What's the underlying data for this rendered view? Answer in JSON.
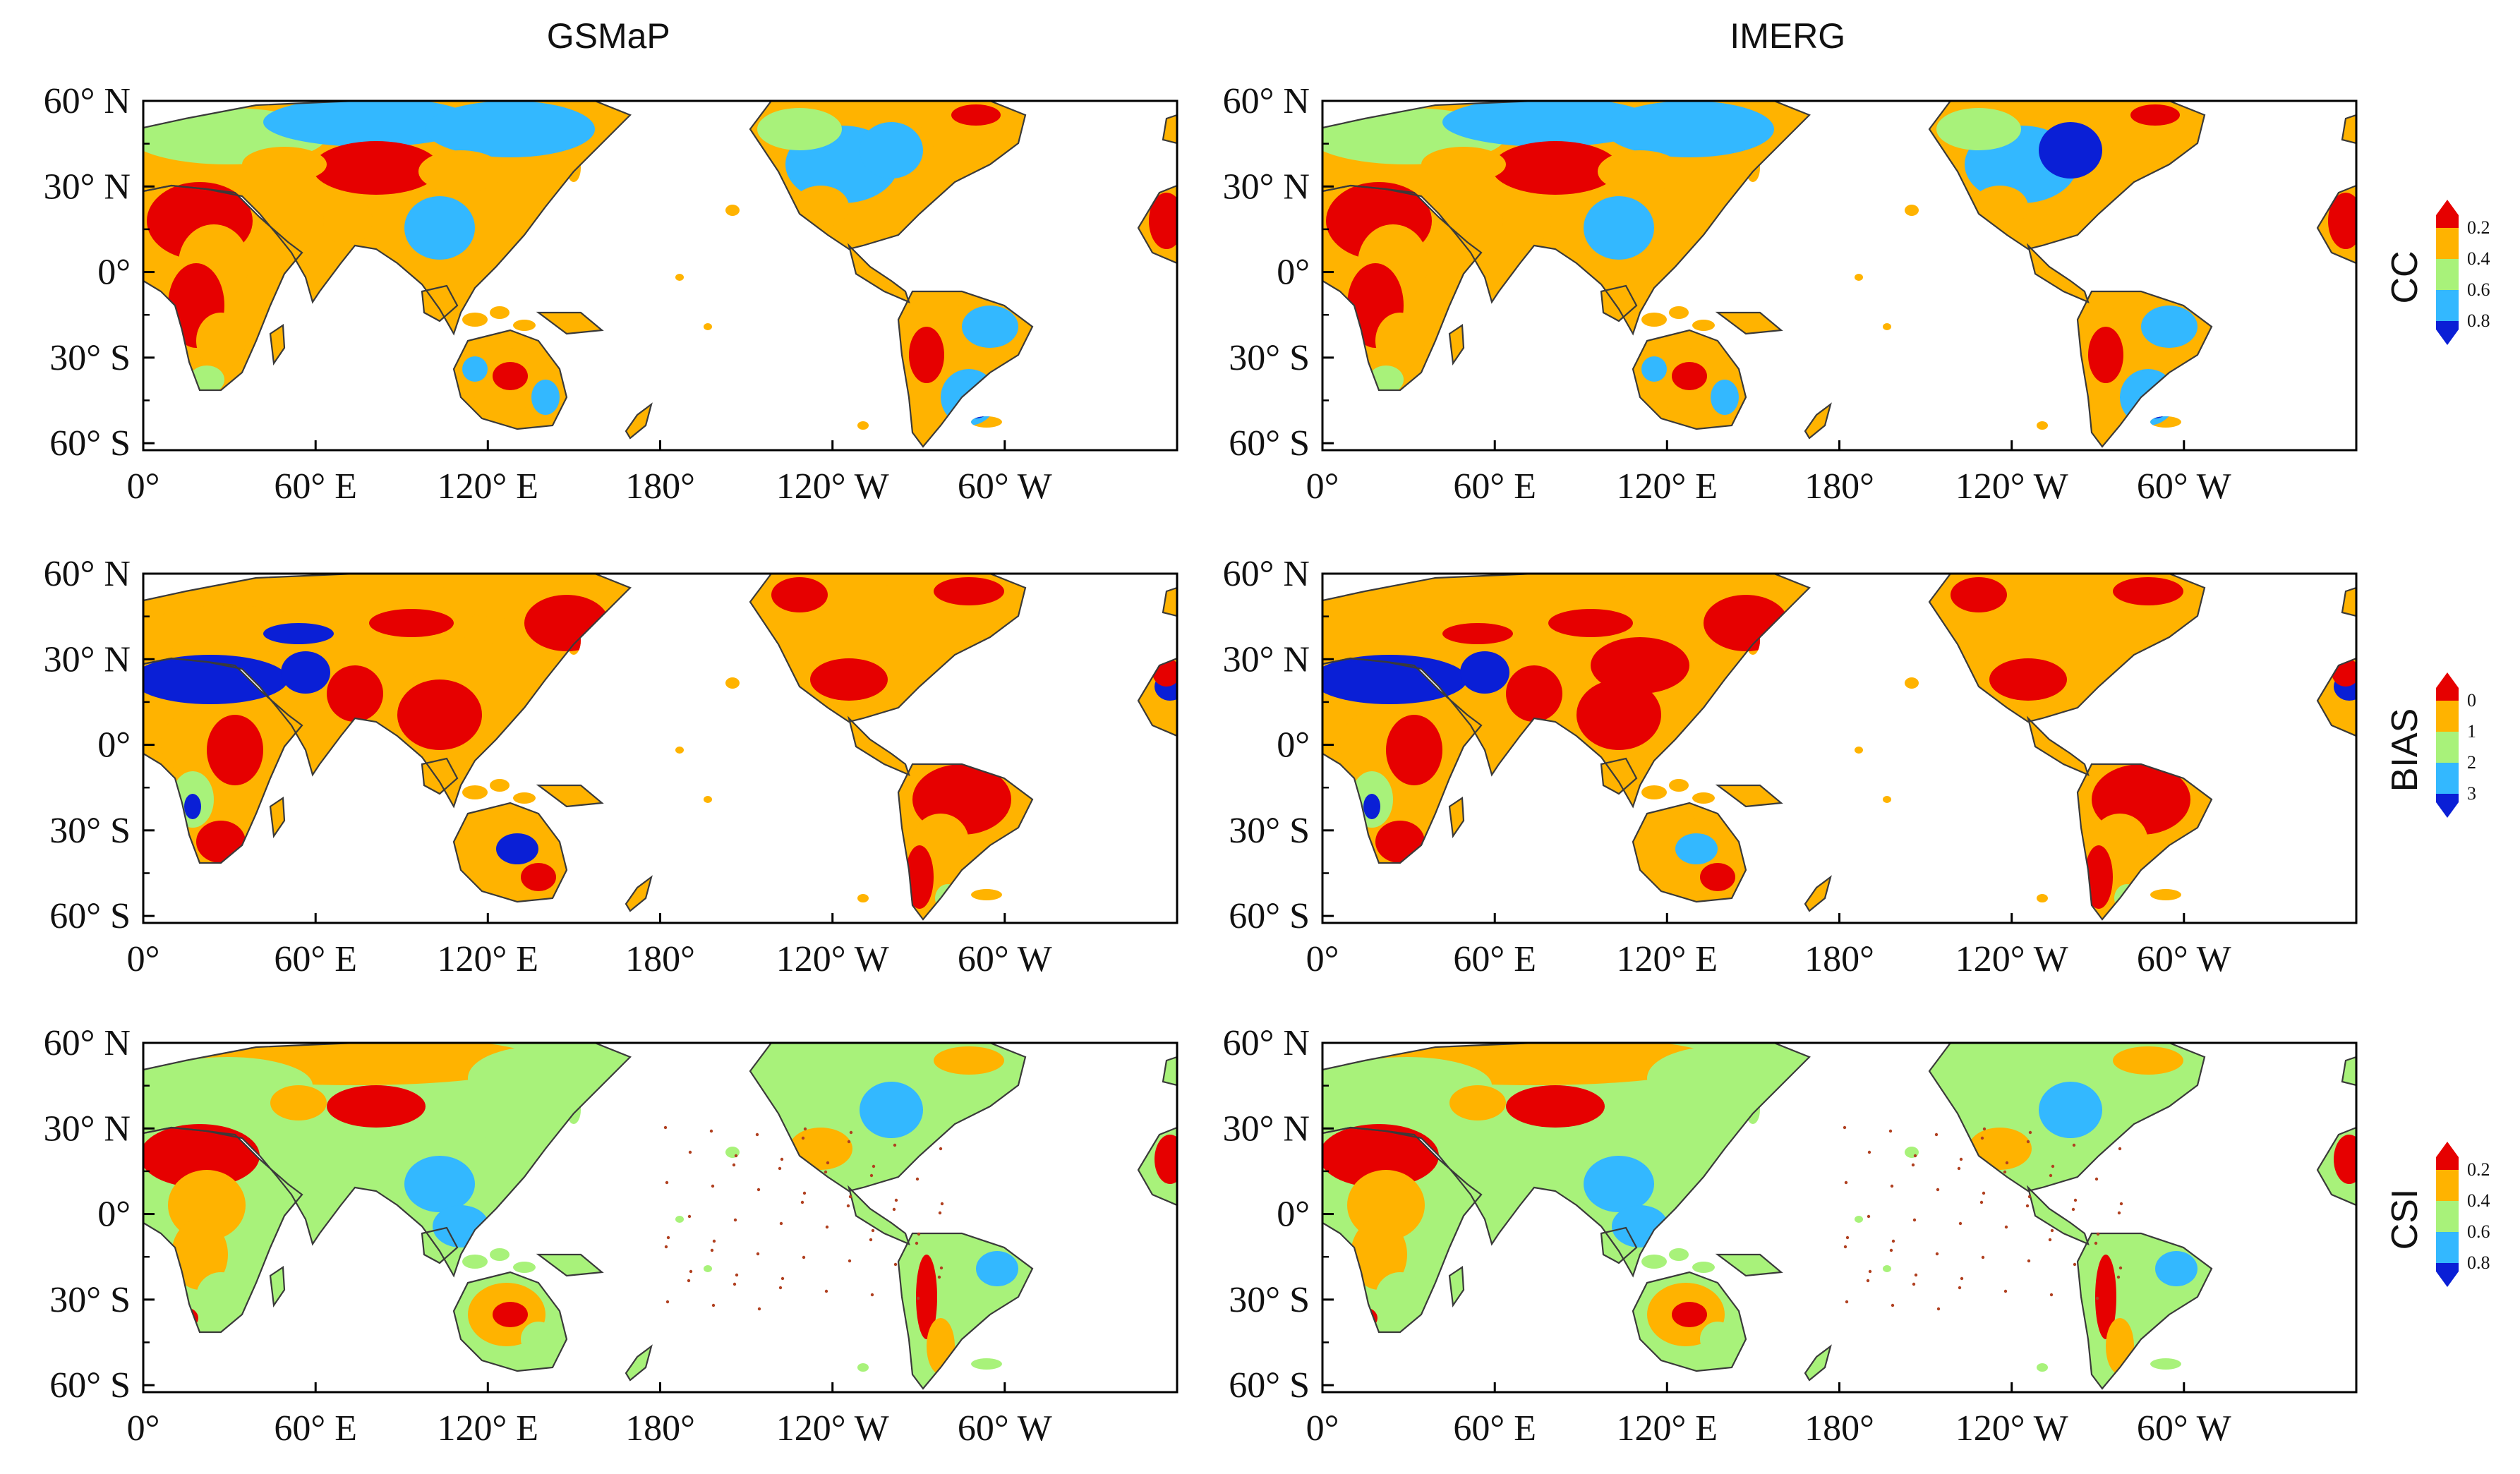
{
  "columns": [
    "GSMaP",
    "IMERG"
  ],
  "rows": [
    {
      "metric": "CC",
      "colorbar_labels": [
        "0.2",
        "0.4",
        "0.6",
        "0.8"
      ]
    },
    {
      "metric": "BIAS",
      "colorbar_labels": [
        "0",
        "1",
        "2",
        "3"
      ]
    },
    {
      "metric": "CSI",
      "colorbar_labels": [
        "0.2",
        "0.4",
        "0.6",
        "0.8"
      ]
    }
  ],
  "lat_labels": [
    "60° N",
    "30° N",
    "0°",
    "30° S",
    "60° S"
  ],
  "lon_labels": [
    "0°",
    "60° E",
    "120° E",
    "180°",
    "120° W",
    "60° W"
  ],
  "palette": [
    "#e60000",
    "#ffb300",
    "#a8f27a",
    "#33b8ff",
    "#0a1fd6"
  ]
}
